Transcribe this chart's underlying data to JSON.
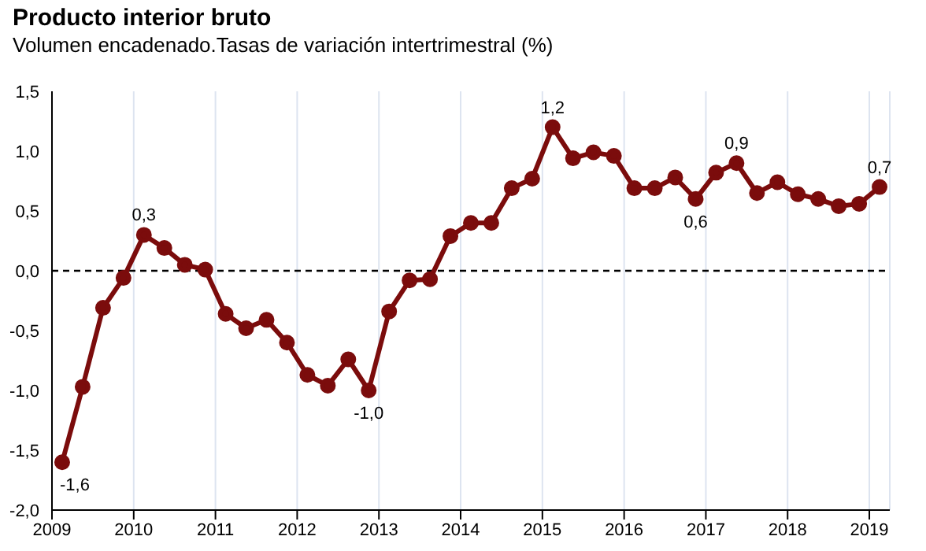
{
  "chart_data": {
    "type": "line",
    "title": "Producto interior bruto",
    "subtitle": "Volumen encadenado.Tasas de variación intertrimestral (%)",
    "x": [
      2009.125,
      2009.375,
      2009.625,
      2009.875,
      2010.125,
      2010.375,
      2010.625,
      2010.875,
      2011.125,
      2011.375,
      2011.625,
      2011.875,
      2012.125,
      2012.375,
      2012.625,
      2012.875,
      2013.125,
      2013.375,
      2013.625,
      2013.875,
      2014.125,
      2014.375,
      2014.625,
      2014.875,
      2015.125,
      2015.375,
      2015.625,
      2015.875,
      2016.125,
      2016.375,
      2016.625,
      2016.875,
      2017.125,
      2017.375,
      2017.625,
      2017.875,
      2018.125,
      2018.375,
      2018.625,
      2018.875,
      2019.125
    ],
    "series": [
      {
        "color": "#7b0c0c",
        "values": [
          -1.6,
          -0.97,
          -0.31,
          -0.06,
          0.3,
          0.19,
          0.05,
          0.01,
          -0.36,
          -0.48,
          -0.41,
          -0.6,
          -0.87,
          -0.96,
          -0.74,
          -1.0,
          -0.34,
          -0.08,
          -0.07,
          0.29,
          0.4,
          0.4,
          0.69,
          0.77,
          1.2,
          0.94,
          0.99,
          0.96,
          0.69,
          0.69,
          0.78,
          0.6,
          0.82,
          0.9,
          0.65,
          0.74,
          0.64,
          0.6,
          0.54,
          0.56,
          0.7
        ],
        "value_labels": [
          "-1,6",
          null,
          null,
          null,
          "0,3",
          null,
          null,
          null,
          null,
          null,
          null,
          null,
          null,
          null,
          null,
          "-1,0",
          null,
          null,
          null,
          null,
          null,
          null,
          null,
          null,
          "1,2",
          null,
          null,
          null,
          null,
          null,
          null,
          "0,6",
          null,
          "0,9",
          null,
          null,
          null,
          null,
          null,
          null,
          "0,7"
        ]
      }
    ],
    "xlim": [
      2009,
      2019.25
    ],
    "xticks": [
      2009,
      2010,
      2011,
      2012,
      2013,
      2014,
      2015,
      2016,
      2017,
      2018,
      2019
    ],
    "ylim": [
      -2.0,
      1.5
    ],
    "yticks": [
      {
        "value": -2.0,
        "label": "-2,0"
      },
      {
        "value": -1.5,
        "label": "-1,5"
      },
      {
        "value": -1.0,
        "label": "-1,0"
      },
      {
        "value": -0.5,
        "label": "-0,5"
      },
      {
        "value": 0.0,
        "label": "0,0"
      },
      {
        "value": 0.5,
        "label": "0,5"
      },
      {
        "value": 1.0,
        "label": "1,0"
      },
      {
        "value": 1.5,
        "label": "1,5"
      }
    ],
    "ref_lines": [
      {
        "axis": "y",
        "value": 0,
        "color": "#000000",
        "line_style": "dashed"
      }
    ],
    "grid": "x",
    "legend": false,
    "marker": "circle",
    "line_style": "solid"
  }
}
